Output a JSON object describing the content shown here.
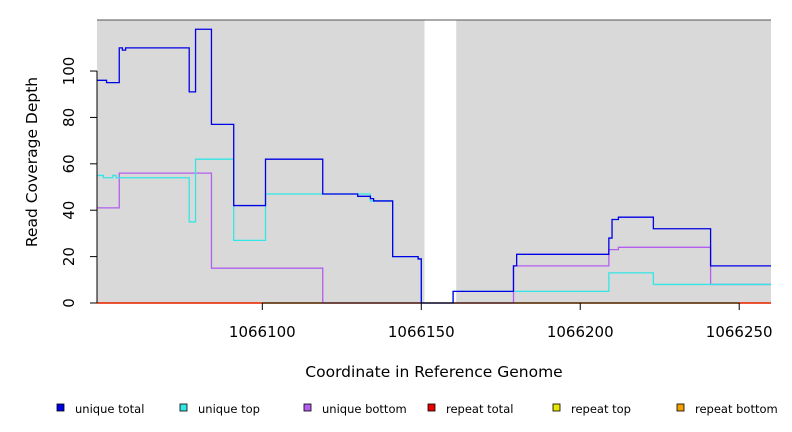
{
  "chart_data": {
    "type": "line",
    "xlabel": "Coordinate in Reference Genome",
    "ylabel": "Read Coverage Depth",
    "xlim": [
      1066048,
      1066260
    ],
    "ylim": [
      0,
      122
    ],
    "x_ticks": [
      1066100,
      1066150,
      1066200,
      1066250
    ],
    "y_ticks": [
      0,
      20,
      40,
      60,
      80,
      100
    ],
    "grid": false,
    "background": "#d9d9d9",
    "gap_region": [
      1066151,
      1066161
    ],
    "legend_position": "bottom",
    "series": [
      {
        "name": "unique total",
        "color": "#0000e6",
        "points": [
          [
            1066048,
            96
          ],
          [
            1066051,
            96
          ],
          [
            1066051,
            95
          ],
          [
            1066055,
            95
          ],
          [
            1066055,
            110
          ],
          [
            1066056,
            110
          ],
          [
            1066056,
            109
          ],
          [
            1066057,
            109
          ],
          [
            1066057,
            110
          ],
          [
            1066077,
            110
          ],
          [
            1066077,
            91
          ],
          [
            1066079,
            91
          ],
          [
            1066079,
            118
          ],
          [
            1066084,
            118
          ],
          [
            1066084,
            77
          ],
          [
            1066091,
            77
          ],
          [
            1066091,
            42
          ],
          [
            1066101,
            42
          ],
          [
            1066101,
            62
          ],
          [
            1066119,
            62
          ],
          [
            1066119,
            47
          ],
          [
            1066130,
            47
          ],
          [
            1066130,
            46
          ],
          [
            1066134,
            46
          ],
          [
            1066134,
            45
          ],
          [
            1066135,
            45
          ],
          [
            1066135,
            44
          ],
          [
            1066141,
            44
          ],
          [
            1066141,
            20
          ],
          [
            1066149,
            20
          ],
          [
            1066149,
            19
          ],
          [
            1066150,
            19
          ],
          [
            1066150,
            0
          ],
          [
            1066160,
            0
          ],
          [
            1066160,
            5
          ],
          [
            1066179,
            5
          ],
          [
            1066179,
            16
          ],
          [
            1066180,
            16
          ],
          [
            1066180,
            21
          ],
          [
            1066209,
            21
          ],
          [
            1066209,
            28
          ],
          [
            1066210,
            28
          ],
          [
            1066210,
            36
          ],
          [
            1066212,
            36
          ],
          [
            1066212,
            37
          ],
          [
            1066223,
            37
          ],
          [
            1066223,
            32
          ],
          [
            1066241,
            32
          ],
          [
            1066241,
            16
          ],
          [
            1066260,
            16
          ]
        ]
      },
      {
        "name": "unique top",
        "color": "#33e6e6",
        "points": [
          [
            1066048,
            55
          ],
          [
            1066050,
            55
          ],
          [
            1066050,
            54
          ],
          [
            1066053,
            54
          ],
          [
            1066053,
            55
          ],
          [
            1066054,
            55
          ],
          [
            1066054,
            54
          ],
          [
            1066077,
            54
          ],
          [
            1066077,
            35
          ],
          [
            1066079,
            35
          ],
          [
            1066079,
            62
          ],
          [
            1066091,
            62
          ],
          [
            1066091,
            27
          ],
          [
            1066101,
            27
          ],
          [
            1066101,
            47
          ],
          [
            1066119,
            47
          ],
          [
            1066119,
            47
          ],
          [
            1066134,
            47
          ],
          [
            1066134,
            44
          ],
          [
            1066141,
            44
          ],
          [
            1066141,
            20
          ],
          [
            1066149,
            20
          ],
          [
            1066149,
            19
          ],
          [
            1066150,
            19
          ],
          [
            1066150,
            0
          ],
          [
            1066160,
            0
          ],
          [
            1066160,
            5
          ],
          [
            1066209,
            5
          ],
          [
            1066209,
            13
          ],
          [
            1066223,
            13
          ],
          [
            1066223,
            8
          ],
          [
            1066260,
            8
          ]
        ]
      },
      {
        "name": "unique bottom",
        "color": "#b45ef0",
        "points": [
          [
            1066048,
            41
          ],
          [
            1066055,
            41
          ],
          [
            1066055,
            56
          ],
          [
            1066084,
            56
          ],
          [
            1066084,
            15
          ],
          [
            1066119,
            15
          ],
          [
            1066119,
            0
          ],
          [
            1066179,
            0
          ],
          [
            1066179,
            16
          ],
          [
            1066209,
            16
          ],
          [
            1066209,
            23
          ],
          [
            1066212,
            23
          ],
          [
            1066212,
            24
          ],
          [
            1066241,
            24
          ],
          [
            1066241,
            8
          ],
          [
            1066260,
            8
          ]
        ]
      },
      {
        "name": "repeat total",
        "color": "#e60000",
        "points": [
          [
            1066048,
            0
          ],
          [
            1066260,
            0
          ]
        ]
      },
      {
        "name": "repeat top",
        "color": "#e6e600",
        "points": [
          [
            1066048,
            0
          ],
          [
            1066260,
            0
          ]
        ]
      },
      {
        "name": "repeat bottom",
        "color": "#f0a000",
        "points": [
          [
            1066048,
            0
          ],
          [
            1066260,
            0
          ]
        ]
      }
    ]
  }
}
